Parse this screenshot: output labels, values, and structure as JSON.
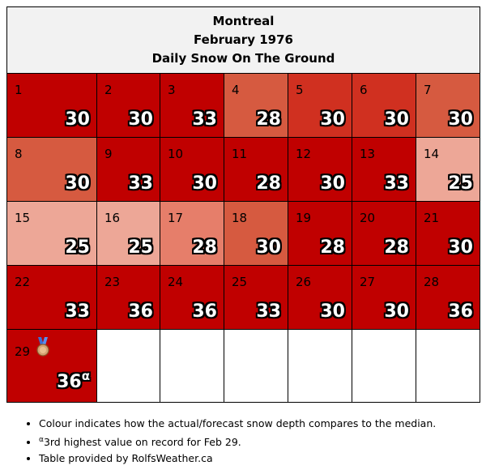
{
  "header": {
    "city": "Montreal",
    "month": "February 1976",
    "subtitle": "Daily Snow On The Ground"
  },
  "colors": {
    "dark": "#c00000",
    "mid": "#d03020",
    "medium": "#d65a40",
    "salmon": "#e67e6a",
    "light": "#eda797"
  },
  "days": [
    {
      "day": "1",
      "value": "30",
      "color": "dark"
    },
    {
      "day": "2",
      "value": "30",
      "color": "dark"
    },
    {
      "day": "3",
      "value": "33",
      "color": "dark"
    },
    {
      "day": "4",
      "value": "28",
      "color": "medium"
    },
    {
      "day": "5",
      "value": "30",
      "color": "mid"
    },
    {
      "day": "6",
      "value": "30",
      "color": "mid"
    },
    {
      "day": "7",
      "value": "30",
      "color": "medium"
    },
    {
      "day": "8",
      "value": "30",
      "color": "medium"
    },
    {
      "day": "9",
      "value": "33",
      "color": "dark"
    },
    {
      "day": "10",
      "value": "30",
      "color": "dark"
    },
    {
      "day": "11",
      "value": "28",
      "color": "dark"
    },
    {
      "day": "12",
      "value": "30",
      "color": "dark"
    },
    {
      "day": "13",
      "value": "33",
      "color": "dark"
    },
    {
      "day": "14",
      "value": "25",
      "color": "light"
    },
    {
      "day": "15",
      "value": "25",
      "color": "light"
    },
    {
      "day": "16",
      "value": "25",
      "color": "light"
    },
    {
      "day": "17",
      "value": "28",
      "color": "salmon"
    },
    {
      "day": "18",
      "value": "30",
      "color": "medium"
    },
    {
      "day": "19",
      "value": "28",
      "color": "dark"
    },
    {
      "day": "20",
      "value": "28",
      "color": "dark"
    },
    {
      "day": "21",
      "value": "30",
      "color": "dark"
    },
    {
      "day": "22",
      "value": "33",
      "color": "dark"
    },
    {
      "day": "23",
      "value": "36",
      "color": "dark"
    },
    {
      "day": "24",
      "value": "36",
      "color": "dark"
    },
    {
      "day": "25",
      "value": "33",
      "color": "dark"
    },
    {
      "day": "26",
      "value": "30",
      "color": "dark"
    },
    {
      "day": "27",
      "value": "30",
      "color": "dark"
    },
    {
      "day": "28",
      "value": "36",
      "color": "dark"
    },
    {
      "day": "29",
      "value": "36",
      "color": "dark",
      "mark": "α",
      "icon": "bronze-medal-icon"
    }
  ],
  "notes": {
    "colour": "Colour indicates how the actual/forecast snow depth compares to the median.",
    "record_mark": "α",
    "record": "3rd highest value on record for Feb 29.",
    "credit": "Table provided by RolfsWeather.ca"
  }
}
